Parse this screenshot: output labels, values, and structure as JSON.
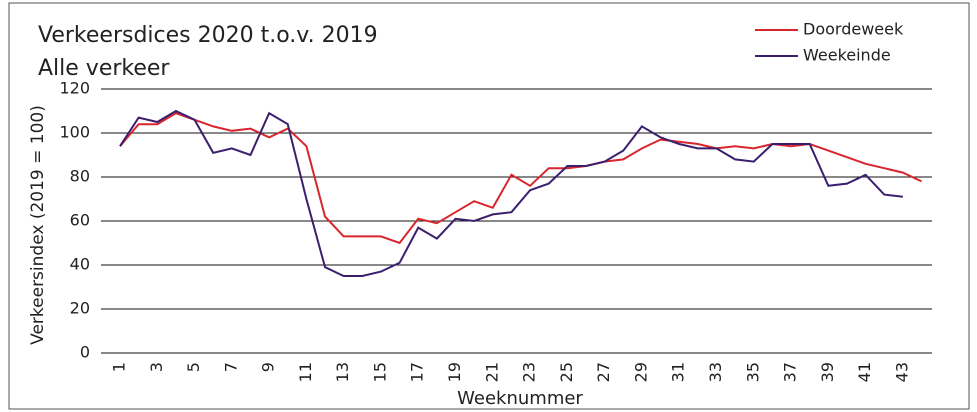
{
  "chart_data": {
    "type": "line",
    "title": "Verkeersdices 2020 t.o.v. 2019",
    "subtitle": "Alle verkeer",
    "y_label": "Verkeersindex (2019 = 100)",
    "x_label": "Weeknummer",
    "categories": [
      1,
      null,
      3,
      null,
      5,
      null,
      7,
      null,
      9,
      null,
      11,
      null,
      13,
      null,
      15,
      null,
      17,
      null,
      19,
      null,
      21,
      null,
      23,
      null,
      25,
      null,
      27,
      null,
      29,
      null,
      31,
      null,
      33,
      null,
      35,
      null,
      37,
      null,
      39,
      null,
      41,
      null,
      43,
      null
    ],
    "series": [
      {
        "name": "Doordeweek",
        "color": "#d9262c",
        "values": [
          94,
          104,
          104,
          109,
          106,
          103,
          101,
          102,
          98,
          102,
          94,
          62,
          53,
          53,
          53,
          50,
          61,
          59,
          64,
          69,
          66,
          81,
          76,
          84,
          84,
          85,
          87,
          88,
          93,
          97,
          96,
          95,
          93,
          94,
          93,
          95,
          94,
          95,
          92,
          89,
          86,
          84,
          82,
          78
        ]
      },
      {
        "name": "Weekeinde",
        "color": "#3b1f6e",
        "values": [
          94,
          107,
          105,
          110,
          106,
          91,
          93,
          90,
          109,
          104,
          70,
          39,
          35,
          35,
          37,
          41,
          57,
          52,
          61,
          60,
          63,
          64,
          74,
          77,
          85,
          85,
          87,
          92,
          103,
          98,
          95,
          93,
          93,
          88,
          87,
          95,
          95,
          95,
          76,
          77,
          81,
          72,
          71,
          null
        ]
      }
    ],
    "ylim": [
      0,
      120
    ],
    "yticks": [
      0,
      20,
      40,
      60,
      80,
      100,
      120
    ],
    "grid": true,
    "legend": "top-right"
  }
}
